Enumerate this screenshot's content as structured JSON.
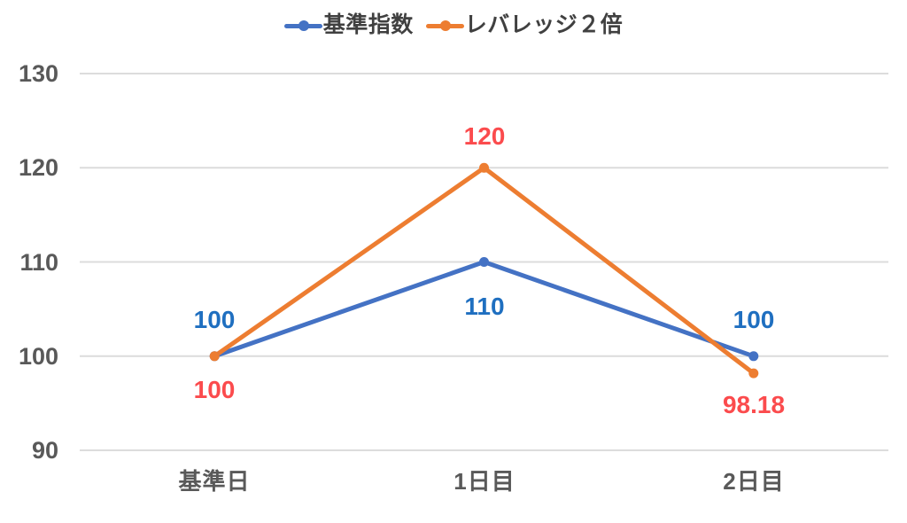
{
  "chart_data": {
    "type": "line",
    "categories": [
      "基準日",
      "1日目",
      "2日目"
    ],
    "series": [
      {
        "name": "基準指数",
        "color": "#4472C4",
        "label_color": "#1F6FC0",
        "values": [
          100,
          110,
          100
        ],
        "data_labels": [
          "100",
          "110",
          "100"
        ],
        "label_offsets": [
          -41,
          50,
          -41
        ]
      },
      {
        "name": "レバレッジ２倍",
        "color": "#ED7D31",
        "label_color": "#FB4B4D",
        "values": [
          100,
          120,
          98.18
        ],
        "data_labels": [
          "100",
          "120",
          "98.18"
        ],
        "label_offsets": [
          38,
          -35,
          36
        ]
      }
    ],
    "ylim": [
      90,
      130
    ],
    "yticks": [
      90,
      100,
      110,
      120,
      130
    ],
    "grid": true,
    "gridline_color": "#DCDCDC",
    "axis_label_color": "#595959",
    "legend_text_color": "#404040",
    "background": "#FFFFFF",
    "legend_position": "top-center",
    "title": "",
    "xlabel": "",
    "ylabel": ""
  }
}
